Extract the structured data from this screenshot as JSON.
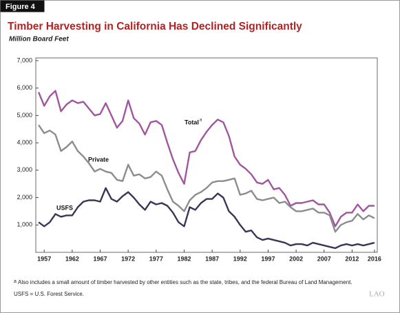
{
  "figure_label": "Figure 4",
  "chart_data": {
    "type": "line",
    "title": "Timber Harvesting in California Has Declined Significantly",
    "subtitle": "Million Board Feet",
    "x": [
      1956,
      1957,
      1958,
      1959,
      1960,
      1961,
      1962,
      1963,
      1964,
      1965,
      1966,
      1967,
      1968,
      1969,
      1970,
      1971,
      1972,
      1973,
      1974,
      1975,
      1976,
      1977,
      1978,
      1979,
      1980,
      1981,
      1982,
      1983,
      1984,
      1985,
      1986,
      1987,
      1988,
      1989,
      1990,
      1991,
      1992,
      1993,
      1994,
      1995,
      1996,
      1997,
      1998,
      1999,
      2000,
      2001,
      2002,
      2003,
      2004,
      2005,
      2006,
      2007,
      2008,
      2009,
      2010,
      2011,
      2012,
      2013,
      2014,
      2015,
      2016
    ],
    "xlim": [
      1955.5,
      2016.5
    ],
    "xticks": [
      1957,
      1962,
      1967,
      1972,
      1977,
      1982,
      1987,
      1992,
      1997,
      2002,
      2007,
      2012,
      2016
    ],
    "ylim": [
      0,
      7000
    ],
    "yticks": [
      {
        "value": 1000,
        "label": "1,000"
      },
      {
        "value": 2000,
        "label": "2,000"
      },
      {
        "value": 3000,
        "label": "3,000"
      },
      {
        "value": 4000,
        "label": "4,000"
      },
      {
        "value": 5000,
        "label": "5,000"
      },
      {
        "value": 6000,
        "label": "6,000"
      },
      {
        "value": 7000,
        "label": "7,000"
      }
    ],
    "series": [
      {
        "name": "Total",
        "note": "a",
        "color": "#a0559f",
        "values": [
          5850,
          5350,
          5700,
          5900,
          5150,
          5400,
          5550,
          5450,
          5500,
          5250,
          5000,
          5050,
          5450,
          5000,
          4550,
          4800,
          5550,
          4900,
          4700,
          4300,
          4750,
          4800,
          4650,
          4000,
          3400,
          2900,
          2500,
          3650,
          3700,
          4100,
          4400,
          4650,
          4850,
          4750,
          4250,
          3500,
          3200,
          3050,
          2850,
          2550,
          2500,
          2650,
          2300,
          2350,
          2100,
          1700,
          1800,
          1800,
          1850,
          1900,
          1750,
          1750,
          1450,
          950,
          1300,
          1450,
          1450,
          1750,
          1500,
          1700,
          1700
        ]
      },
      {
        "name": "Private",
        "color": "#8c8c8c",
        "values": [
          4650,
          4350,
          4450,
          4300,
          3700,
          3850,
          4050,
          3700,
          3500,
          3250,
          2950,
          3050,
          2950,
          2900,
          2650,
          2600,
          3200,
          2800,
          2850,
          2700,
          2750,
          2950,
          2800,
          2300,
          1850,
          1700,
          1500,
          1900,
          2100,
          2200,
          2350,
          2550,
          2600,
          2600,
          2650,
          2700,
          2100,
          2150,
          2250,
          1950,
          1900,
          1950,
          2000,
          1800,
          1850,
          1650,
          1500,
          1500,
          1550,
          1600,
          1450,
          1450,
          1350,
          750,
          1000,
          1100,
          1150,
          1400,
          1200,
          1350,
          1250
        ]
      },
      {
        "name": "USFS",
        "color": "#3a3556",
        "values": [
          1100,
          950,
          1100,
          1400,
          1300,
          1350,
          1350,
          1650,
          1850,
          1900,
          1900,
          1850,
          2350,
          1950,
          1850,
          2050,
          2200,
          2000,
          1750,
          1550,
          1850,
          1750,
          1800,
          1700,
          1450,
          1100,
          950,
          1650,
          1550,
          1800,
          1950,
          1950,
          2150,
          2000,
          1500,
          1300,
          1000,
          750,
          800,
          550,
          450,
          500,
          450,
          400,
          350,
          250,
          300,
          300,
          250,
          350,
          300,
          250,
          200,
          150,
          250,
          300,
          250,
          300,
          250,
          300,
          350
        ]
      }
    ]
  },
  "footnotes": [
    {
      "marker": "a",
      "text": "Also includes a small amount of timber harvested by other entities such as the state, tribes, and the federal Bureau of Land Management."
    },
    {
      "text": "USFS = U.S. Forest Service."
    }
  ],
  "logo": "LAO"
}
